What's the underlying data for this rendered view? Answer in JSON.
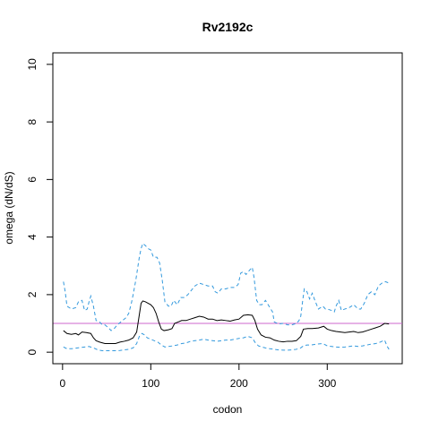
{
  "chart_data": {
    "type": "line",
    "title": "Rv2192c",
    "xlabel": "codon",
    "ylabel": "omega (dN/dS)",
    "xlim": [
      -11,
      385
    ],
    "ylim": [
      -0.4,
      10.4
    ],
    "x_ticks": [
      0,
      100,
      200,
      300
    ],
    "y_ticks": [
      0,
      2,
      4,
      6,
      8,
      10
    ],
    "x_tick_labels": [
      "0",
      "100",
      "200",
      "300"
    ],
    "y_tick_labels": [
      "0",
      "2",
      "4",
      "6",
      "8",
      "10"
    ],
    "grid": false,
    "legend": "none",
    "reference_line": {
      "y": 1.0,
      "color": "#cc66cc"
    },
    "series": [
      {
        "role": "upper",
        "color": "#3399dd",
        "dash": true,
        "points": [
          [
            1,
            2.45
          ],
          [
            3,
            2.1
          ],
          [
            5,
            1.6
          ],
          [
            10,
            1.5
          ],
          [
            15,
            1.55
          ],
          [
            18,
            1.75
          ],
          [
            22,
            1.8
          ],
          [
            25,
            1.45
          ],
          [
            28,
            1.5
          ],
          [
            30,
            1.75
          ],
          [
            32,
            1.95
          ],
          [
            35,
            1.6
          ],
          [
            38,
            1.1
          ],
          [
            42,
            1.05
          ],
          [
            45,
            0.95
          ],
          [
            48,
            0.95
          ],
          [
            52,
            0.85
          ],
          [
            55,
            0.75
          ],
          [
            58,
            0.8
          ],
          [
            62,
            0.95
          ],
          [
            68,
            1.1
          ],
          [
            72,
            1.2
          ],
          [
            75,
            1.35
          ],
          [
            78,
            1.7
          ],
          [
            80,
            2.0
          ],
          [
            83,
            2.5
          ],
          [
            85,
            2.9
          ],
          [
            87,
            3.3
          ],
          [
            89,
            3.6
          ],
          [
            91,
            3.78
          ],
          [
            94,
            3.7
          ],
          [
            97,
            3.6
          ],
          [
            100,
            3.55
          ],
          [
            103,
            3.3
          ],
          [
            107,
            3.3
          ],
          [
            110,
            3.1
          ],
          [
            113,
            2.5
          ],
          [
            116,
            1.75
          ],
          [
            120,
            1.6
          ],
          [
            123,
            1.6
          ],
          [
            126,
            1.8
          ],
          [
            130,
            1.65
          ],
          [
            134,
            1.9
          ],
          [
            138,
            1.9
          ],
          [
            142,
            2.0
          ],
          [
            146,
            2.15
          ],
          [
            150,
            2.3
          ],
          [
            155,
            2.4
          ],
          [
            160,
            2.35
          ],
          [
            165,
            2.3
          ],
          [
            170,
            2.3
          ],
          [
            173,
            2.1
          ],
          [
            176,
            2.05
          ],
          [
            180,
            2.2
          ],
          [
            185,
            2.2
          ],
          [
            190,
            2.25
          ],
          [
            195,
            2.25
          ],
          [
            199,
            2.35
          ],
          [
            202,
            2.75
          ],
          [
            205,
            2.8
          ],
          [
            208,
            2.7
          ],
          [
            212,
            2.85
          ],
          [
            215,
            2.95
          ],
          [
            217,
            2.6
          ],
          [
            220,
            1.8
          ],
          [
            223,
            1.65
          ],
          [
            226,
            1.65
          ],
          [
            230,
            1.8
          ],
          [
            235,
            1.55
          ],
          [
            238,
            1.4
          ],
          [
            240,
            1.05
          ],
          [
            245,
            0.98
          ],
          [
            250,
            1.0
          ],
          [
            255,
            0.95
          ],
          [
            260,
            0.95
          ],
          [
            265,
            1.0
          ],
          [
            268,
            1.1
          ],
          [
            270,
            1.25
          ],
          [
            272,
            1.75
          ],
          [
            274,
            2.2
          ],
          [
            277,
            2.1
          ],
          [
            280,
            1.85
          ],
          [
            283,
            2.05
          ],
          [
            286,
            1.8
          ],
          [
            290,
            1.5
          ],
          [
            295,
            1.6
          ],
          [
            298,
            1.5
          ],
          [
            300,
            1.5
          ],
          [
            305,
            1.45
          ],
          [
            308,
            1.4
          ],
          [
            310,
            1.6
          ],
          [
            313,
            1.8
          ],
          [
            316,
            1.45
          ],
          [
            320,
            1.5
          ],
          [
            325,
            1.55
          ],
          [
            330,
            1.65
          ],
          [
            335,
            1.5
          ],
          [
            338,
            1.5
          ],
          [
            342,
            1.7
          ],
          [
            346,
            2.0
          ],
          [
            350,
            2.1
          ],
          [
            354,
            2.0
          ],
          [
            358,
            2.3
          ],
          [
            362,
            2.4
          ],
          [
            366,
            2.45
          ],
          [
            370,
            2.4
          ]
        ]
      },
      {
        "role": "estimate",
        "color": "#000000",
        "dash": false,
        "points": [
          [
            1,
            0.75
          ],
          [
            5,
            0.65
          ],
          [
            10,
            0.62
          ],
          [
            15,
            0.65
          ],
          [
            18,
            0.6
          ],
          [
            22,
            0.7
          ],
          [
            27,
            0.68
          ],
          [
            32,
            0.65
          ],
          [
            35,
            0.5
          ],
          [
            38,
            0.4
          ],
          [
            42,
            0.35
          ],
          [
            48,
            0.3
          ],
          [
            55,
            0.3
          ],
          [
            60,
            0.3
          ],
          [
            65,
            0.35
          ],
          [
            70,
            0.38
          ],
          [
            75,
            0.42
          ],
          [
            80,
            0.5
          ],
          [
            84,
            0.7
          ],
          [
            87,
            1.3
          ],
          [
            89,
            1.7
          ],
          [
            91,
            1.78
          ],
          [
            94,
            1.75
          ],
          [
            97,
            1.7
          ],
          [
            100,
            1.65
          ],
          [
            103,
            1.55
          ],
          [
            106,
            1.35
          ],
          [
            109,
            1.05
          ],
          [
            112,
            0.8
          ],
          [
            115,
            0.75
          ],
          [
            120,
            0.78
          ],
          [
            124,
            0.82
          ],
          [
            127,
            1.0
          ],
          [
            131,
            1.05
          ],
          [
            135,
            1.1
          ],
          [
            140,
            1.1
          ],
          [
            145,
            1.15
          ],
          [
            150,
            1.2
          ],
          [
            155,
            1.25
          ],
          [
            160,
            1.22
          ],
          [
            165,
            1.15
          ],
          [
            170,
            1.15
          ],
          [
            175,
            1.1
          ],
          [
            180,
            1.12
          ],
          [
            185,
            1.1
          ],
          [
            190,
            1.08
          ],
          [
            195,
            1.12
          ],
          [
            200,
            1.15
          ],
          [
            205,
            1.28
          ],
          [
            210,
            1.3
          ],
          [
            215,
            1.28
          ],
          [
            218,
            1.1
          ],
          [
            221,
            0.8
          ],
          [
            225,
            0.6
          ],
          [
            230,
            0.52
          ],
          [
            235,
            0.5
          ],
          [
            240,
            0.42
          ],
          [
            245,
            0.38
          ],
          [
            250,
            0.36
          ],
          [
            255,
            0.38
          ],
          [
            260,
            0.38
          ],
          [
            265,
            0.4
          ],
          [
            270,
            0.55
          ],
          [
            273,
            0.8
          ],
          [
            278,
            0.82
          ],
          [
            283,
            0.82
          ],
          [
            290,
            0.84
          ],
          [
            296,
            0.9
          ],
          [
            300,
            0.8
          ],
          [
            305,
            0.75
          ],
          [
            310,
            0.72
          ],
          [
            315,
            0.7
          ],
          [
            320,
            0.68
          ],
          [
            325,
            0.7
          ],
          [
            330,
            0.72
          ],
          [
            335,
            0.68
          ],
          [
            340,
            0.7
          ],
          [
            345,
            0.75
          ],
          [
            350,
            0.8
          ],
          [
            355,
            0.85
          ],
          [
            360,
            0.9
          ],
          [
            365,
            1.0
          ],
          [
            370,
            0.98
          ]
        ]
      },
      {
        "role": "lower",
        "color": "#3399dd",
        "dash": true,
        "points": [
          [
            1,
            0.18
          ],
          [
            5,
            0.12
          ],
          [
            10,
            0.12
          ],
          [
            15,
            0.14
          ],
          [
            20,
            0.16
          ],
          [
            25,
            0.18
          ],
          [
            30,
            0.2
          ],
          [
            35,
            0.15
          ],
          [
            40,
            0.08
          ],
          [
            45,
            0.05
          ],
          [
            50,
            0.05
          ],
          [
            60,
            0.05
          ],
          [
            65,
            0.06
          ],
          [
            70,
            0.08
          ],
          [
            75,
            0.1
          ],
          [
            80,
            0.15
          ],
          [
            84,
            0.3
          ],
          [
            87,
            0.55
          ],
          [
            90,
            0.65
          ],
          [
            93,
            0.6
          ],
          [
            96,
            0.5
          ],
          [
            100,
            0.45
          ],
          [
            104,
            0.4
          ],
          [
            108,
            0.35
          ],
          [
            112,
            0.25
          ],
          [
            116,
            0.18
          ],
          [
            120,
            0.2
          ],
          [
            125,
            0.22
          ],
          [
            130,
            0.25
          ],
          [
            135,
            0.3
          ],
          [
            140,
            0.32
          ],
          [
            145,
            0.38
          ],
          [
            150,
            0.4
          ],
          [
            155,
            0.42
          ],
          [
            160,
            0.45
          ],
          [
            165,
            0.42
          ],
          [
            170,
            0.4
          ],
          [
            175,
            0.38
          ],
          [
            180,
            0.4
          ],
          [
            185,
            0.42
          ],
          [
            190,
            0.42
          ],
          [
            195,
            0.45
          ],
          [
            200,
            0.48
          ],
          [
            205,
            0.5
          ],
          [
            210,
            0.55
          ],
          [
            215,
            0.5
          ],
          [
            218,
            0.35
          ],
          [
            222,
            0.22
          ],
          [
            226,
            0.18
          ],
          [
            230,
            0.15
          ],
          [
            235,
            0.12
          ],
          [
            240,
            0.1
          ],
          [
            245,
            0.08
          ],
          [
            250,
            0.07
          ],
          [
            255,
            0.07
          ],
          [
            260,
            0.08
          ],
          [
            265,
            0.1
          ],
          [
            270,
            0.15
          ],
          [
            273,
            0.22
          ],
          [
            277,
            0.25
          ],
          [
            282,
            0.25
          ],
          [
            288,
            0.28
          ],
          [
            295,
            0.3
          ],
          [
            300,
            0.22
          ],
          [
            305,
            0.2
          ],
          [
            310,
            0.18
          ],
          [
            315,
            0.17
          ],
          [
            320,
            0.18
          ],
          [
            325,
            0.2
          ],
          [
            330,
            0.22
          ],
          [
            335,
            0.2
          ],
          [
            340,
            0.22
          ],
          [
            345,
            0.25
          ],
          [
            350,
            0.28
          ],
          [
            355,
            0.3
          ],
          [
            360,
            0.35
          ],
          [
            365,
            0.42
          ],
          [
            368,
            0.2
          ],
          [
            370,
            0.1
          ]
        ]
      }
    ]
  }
}
